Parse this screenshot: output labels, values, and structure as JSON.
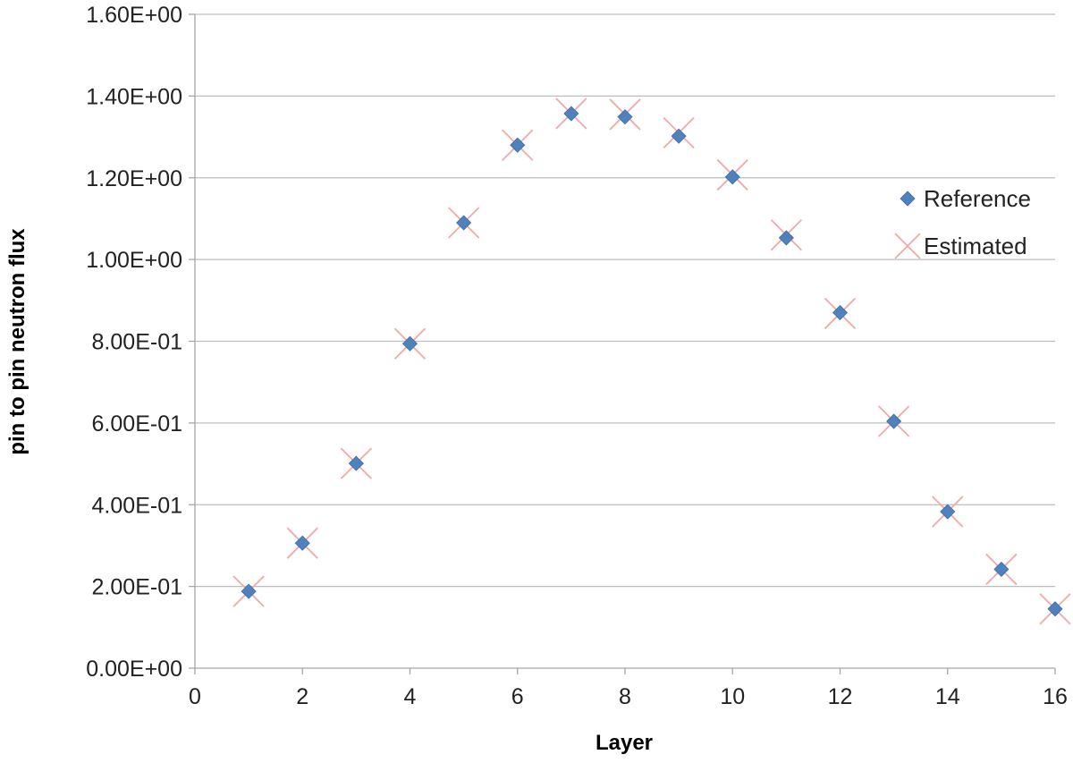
{
  "chart_data": {
    "type": "scatter",
    "xlabel": "Layer",
    "ylabel": "pin to pin neutron flux",
    "xlim": [
      0,
      16
    ],
    "ylim": [
      0,
      1.6
    ],
    "x_ticks": [
      0,
      2,
      4,
      6,
      8,
      10,
      12,
      14,
      16
    ],
    "y_ticks": [
      0,
      0.2,
      0.4,
      0.6,
      0.8,
      1.0,
      1.2,
      1.4,
      1.6
    ],
    "y_tick_labels": [
      "0.00E+00",
      "2.00E-01",
      "4.00E-01",
      "6.00E-01",
      "8.00E-01",
      "1.00E+00",
      "1.20E+00",
      "1.40E+00",
      "1.60E+00"
    ],
    "grid": "horizontal",
    "legend_position": "right",
    "series": [
      {
        "name": "Reference",
        "marker": "diamond",
        "color": "#4f81bd",
        "x": [
          1,
          2,
          3,
          4,
          5,
          6,
          7,
          8,
          9,
          10,
          11,
          12,
          13,
          14,
          15,
          16
        ],
        "y": [
          0.188,
          0.306,
          0.501,
          0.794,
          1.09,
          1.28,
          1.357,
          1.349,
          1.302,
          1.202,
          1.053,
          0.87,
          0.604,
          0.383,
          0.242,
          0.145
        ]
      },
      {
        "name": "Estimated",
        "marker": "x",
        "color": "#f2a8a8",
        "x": [
          1,
          2,
          3,
          4,
          5,
          6,
          7,
          8,
          9,
          10,
          11,
          12,
          13,
          14,
          15,
          16
        ],
        "y": [
          0.188,
          0.306,
          0.501,
          0.794,
          1.09,
          1.28,
          1.357,
          1.355,
          1.31,
          1.207,
          1.06,
          0.868,
          0.604,
          0.383,
          0.242,
          0.145
        ]
      }
    ]
  }
}
